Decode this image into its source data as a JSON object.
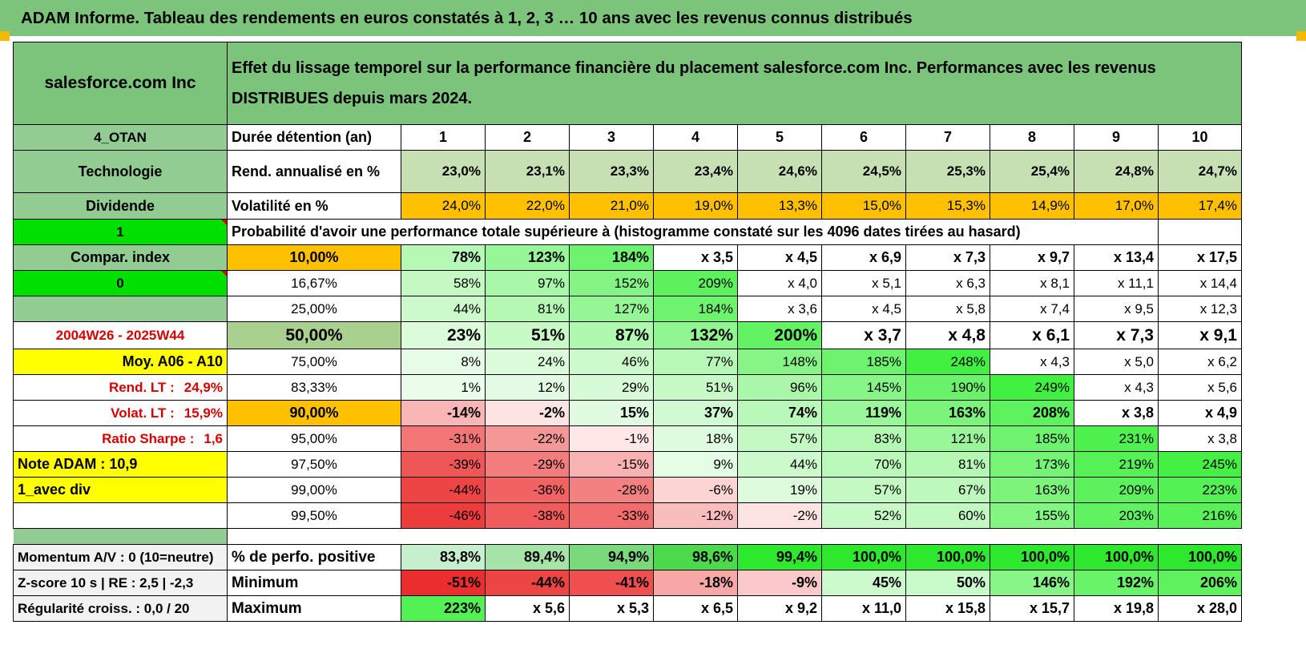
{
  "banner": {
    "title": "ADAM Informe. Tableau des rendements en euros constatés à 1, 2, 3 … 10 ans avec les revenus connus distribués"
  },
  "colors": {
    "banner": "#7cc47c",
    "header_green": "#7cc47c",
    "label_green": "#93cc93",
    "bright_green": "#00e000",
    "orange": "#ffc000",
    "yellow": "#ffff00",
    "red_text": "#d60000"
  },
  "header": {
    "name": "salesforce.com Inc",
    "description": "Effet du lissage temporel sur la performance financière du placement salesforce.com Inc. Performances avec les revenus DISTRIBUES depuis mars 2024."
  },
  "left": {
    "code": "4_OTAN",
    "sector": "Technologie",
    "div": "Dividende",
    "flag1": "1",
    "compar": "Compar. index",
    "flag0": "0",
    "period": "2004W26 - 2025W44",
    "moy": "Moy. A06 - A10",
    "rend_lbl": "Rend. LT :",
    "rend_val": "24,9%",
    "volat_lbl": "Volat. LT :",
    "volat_val": "15,9%",
    "sharpe_lbl": "Ratio Sharpe :",
    "sharpe_val": "1,6",
    "note": "Note ADAM : 10,9",
    "avec": "1_avec div",
    "momentum": "Momentum A/V : 0 (10=neutre)",
    "zscore": "Z-score 10 s | RE : 2,5 | -2,3",
    "regul": "Régularité croiss. : 0,0 / 20"
  },
  "table": {
    "duree_label": "Durée détention (an)",
    "years": [
      "1",
      "2",
      "3",
      "4",
      "5",
      "6",
      "7",
      "8",
      "9",
      "10"
    ],
    "rend_label": "Rend. annualisé en %",
    "rend": [
      "23,0%",
      "23,1%",
      "23,3%",
      "23,4%",
      "24,6%",
      "24,5%",
      "25,3%",
      "25,4%",
      "24,8%",
      "24,7%"
    ],
    "vol_label": "Volatilité en %",
    "vol": [
      "24,0%",
      "22,0%",
      "21,0%",
      "19,0%",
      "13,3%",
      "15,0%",
      "15,3%",
      "14,9%",
      "17,0%",
      "17,4%"
    ],
    "prob_title": "Probabilité d'avoir une performance totale supérieure à (histogramme constaté sur les 4096 dates tirées au hasard)",
    "prob_rows": [
      {
        "p": "10,00%",
        "v": [
          "78%",
          "123%",
          "184%",
          "x 3,5",
          "x 4,5",
          "x 6,9",
          "x 7,3",
          "x 9,7",
          "x 13,4",
          "x 17,5"
        ]
      },
      {
        "p": "16,67%",
        "v": [
          "58%",
          "97%",
          "152%",
          "209%",
          "x 4,0",
          "x 5,1",
          "x 6,3",
          "x 8,1",
          "x 11,1",
          "x 14,4"
        ]
      },
      {
        "p": "25,00%",
        "v": [
          "44%",
          "81%",
          "127%",
          "184%",
          "x 3,6",
          "x 4,5",
          "x 5,8",
          "x 7,4",
          "x 9,5",
          "x 12,3"
        ]
      },
      {
        "p": "50,00%",
        "v": [
          "23%",
          "51%",
          "87%",
          "132%",
          "200%",
          "x 3,7",
          "x 4,8",
          "x 6,1",
          "x 7,3",
          "x 9,1"
        ]
      },
      {
        "p": "75,00%",
        "v": [
          "8%",
          "24%",
          "46%",
          "77%",
          "148%",
          "185%",
          "248%",
          "x 4,3",
          "x 5,0",
          "x 6,2"
        ]
      },
      {
        "p": "83,33%",
        "v": [
          "1%",
          "12%",
          "29%",
          "51%",
          "96%",
          "145%",
          "190%",
          "249%",
          "x 4,3",
          "x 5,6"
        ]
      },
      {
        "p": "90,00%",
        "v": [
          "-14%",
          "-2%",
          "15%",
          "37%",
          "74%",
          "119%",
          "163%",
          "208%",
          "x 3,8",
          "x 4,9"
        ]
      },
      {
        "p": "95,00%",
        "v": [
          "-31%",
          "-22%",
          "-1%",
          "18%",
          "57%",
          "83%",
          "121%",
          "185%",
          "231%",
          "x 3,8"
        ]
      },
      {
        "p": "97,50%",
        "v": [
          "-39%",
          "-29%",
          "-15%",
          "9%",
          "44%",
          "70%",
          "81%",
          "173%",
          "219%",
          "245%"
        ]
      },
      {
        "p": "99,00%",
        "v": [
          "-44%",
          "-36%",
          "-28%",
          "-6%",
          "19%",
          "57%",
          "67%",
          "163%",
          "209%",
          "223%"
        ]
      },
      {
        "p": "99,50%",
        "v": [
          "-46%",
          "-38%",
          "-33%",
          "-12%",
          "-2%",
          "52%",
          "60%",
          "155%",
          "203%",
          "216%"
        ]
      }
    ],
    "pos_label": "% de perfo. positive",
    "pos": [
      "83,8%",
      "89,4%",
      "94,9%",
      "98,6%",
      "99,4%",
      "100,0%",
      "100,0%",
      "100,0%",
      "100,0%",
      "100,0%"
    ],
    "min_label": "Minimum",
    "min": [
      "-51%",
      "-44%",
      "-41%",
      "-18%",
      "-9%",
      "45%",
      "50%",
      "146%",
      "192%",
      "206%"
    ],
    "max_label": "Maximum",
    "max": [
      "223%",
      "x 5,6",
      "x 5,3",
      "x 6,5",
      "x 9,2",
      "x 11,0",
      "x 15,8",
      "x 15,7",
      "x 19,8",
      "x 28,0"
    ]
  }
}
